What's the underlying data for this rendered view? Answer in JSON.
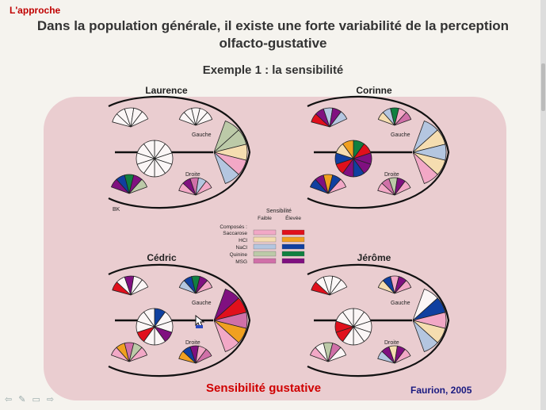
{
  "slide": {
    "corner_title": "L'approche",
    "title": "Dans la population générale, il existe une forte variabilité de la perception olfacto-gustative",
    "subtitle": "Exemple 1 : la sensibilité",
    "footer_label": "Sensibilité gustative",
    "credit": "Faurion, 2005"
  },
  "labels": {
    "left": "Gauche",
    "right": "Droite"
  },
  "subjects": [
    {
      "name": "Laurence",
      "extra": "BK"
    },
    {
      "name": "Corinne",
      "extra": ""
    },
    {
      "name": "Cédric",
      "extra": ""
    },
    {
      "name": "Jérôme",
      "extra": ""
    }
  ],
  "legend": {
    "header": "Sensibilité",
    "col_low": "Faible",
    "col_high": "Élevée",
    "title": "Composés :",
    "items": [
      {
        "name": "Saccarose",
        "low": "#f2a8c6",
        "high": "#e0101c"
      },
      {
        "name": "HCl",
        "low": "#f5ddb0",
        "high": "#f0a020"
      },
      {
        "name": "NaCl",
        "low": "#b4c6e0",
        "high": "#1040a0"
      },
      {
        "name": "Quinine",
        "low": "#bccaa8",
        "high": "#108040"
      },
      {
        "name": "MSG",
        "low": "#d070a8",
        "high": "#801080"
      }
    ]
  },
  "nav_icons": [
    "back-arrow-icon",
    "pen-icon",
    "menu-icon",
    "forward-arrow-icon"
  ]
}
